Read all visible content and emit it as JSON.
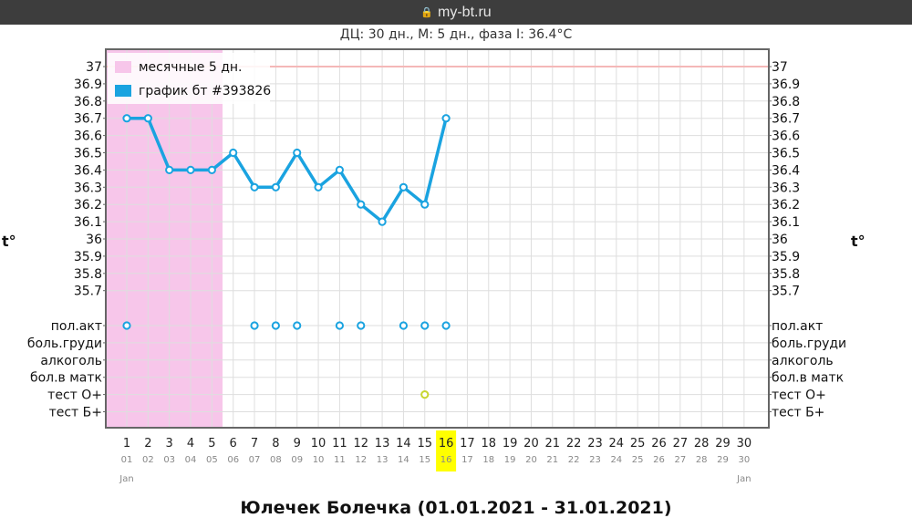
{
  "browser": {
    "url": "my-bt.ru"
  },
  "header": {
    "summary": "ДЦ: 30 дн., М: 5 дн., фаза I: 36.4°C"
  },
  "footer": {
    "title": "Юлечек Болечка (01.01.2021 - 31.01.2021)"
  },
  "chart_data": {
    "type": "line",
    "ylabel": "t°",
    "ylim": [
      35.6,
      37
    ],
    "y_ticks": [
      "37",
      "36.9",
      "36.8",
      "36.7",
      "36.6",
      "36.5",
      "36.4",
      "36.3",
      "36.2",
      "36.1",
      "36",
      "35.9",
      "35.8",
      "35.7"
    ],
    "x": [
      1,
      2,
      3,
      4,
      5,
      6,
      7,
      8,
      9,
      10,
      11,
      12,
      13,
      14,
      15,
      16,
      17,
      18,
      19,
      20,
      21,
      22,
      23,
      24,
      25,
      26,
      27,
      28,
      29,
      30
    ],
    "dates": [
      "01",
      "02",
      "03",
      "04",
      "05",
      "06",
      "07",
      "08",
      "09",
      "10",
      "11",
      "12",
      "13",
      "14",
      "15",
      "16",
      "17",
      "18",
      "19",
      "20",
      "21",
      "22",
      "23",
      "24",
      "25",
      "26",
      "27",
      "28",
      "29",
      "30"
    ],
    "month_start": "Jan",
    "month_end": "Jan",
    "highlight_day": 16,
    "menstruation_days": [
      1,
      5
    ],
    "legend_position": "top-left",
    "series": [
      {
        "name": "месячные 5 дн.",
        "kind": "band",
        "color": "#f7c6ea"
      },
      {
        "name": "график бт #393826",
        "kind": "line",
        "color": "#1aa3e0",
        "x": [
          1,
          2,
          3,
          4,
          5,
          6,
          7,
          8,
          9,
          10,
          11,
          12,
          13,
          14,
          15,
          16
        ],
        "values": [
          36.7,
          36.7,
          36.4,
          36.4,
          36.4,
          36.5,
          36.3,
          36.3,
          36.5,
          36.3,
          36.4,
          36.2,
          36.1,
          36.3,
          36.2,
          36.7
        ]
      }
    ],
    "reference_line": {
      "value": 37,
      "color": "#f4b8b8"
    },
    "markers": {
      "rows": [
        "пол.акт",
        "боль.груди",
        "алкоголь",
        "бол.в матк",
        "тест О+",
        "тест Б+"
      ],
      "points": [
        {
          "row": "пол.акт",
          "days": [
            1,
            7,
            8,
            9,
            11,
            12,
            14,
            15,
            16
          ],
          "color": "#1aa3e0"
        },
        {
          "row": "тест О+",
          "days": [
            15
          ],
          "color": "#c8d630"
        }
      ]
    },
    "grid": true,
    "colors": {
      "line": "#1aa3e0",
      "menstruation": "#f7c6ea",
      "highlight": "#ffff00",
      "ovulation_marker": "#c8d630"
    }
  }
}
